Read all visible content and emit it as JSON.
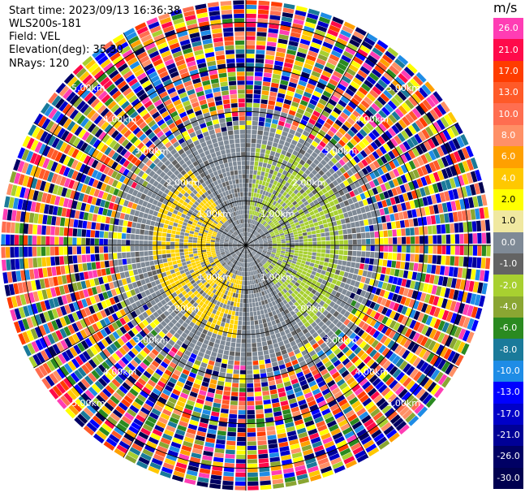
{
  "header": {
    "start_time": "Start time: 2023/09/13 16:36:38",
    "instrument": "WLS200s-181",
    "field": "Field: VEL",
    "elevation": "Elevation(deg): 35.30",
    "nrays": "NRays: 120"
  },
  "colorbar": {
    "unit": "m/s",
    "levels": [
      {
        "label": "26.0",
        "color": "#ff3db4"
      },
      {
        "label": "21.0",
        "color": "#ff0a4a"
      },
      {
        "label": "17.0",
        "color": "#ff3c00"
      },
      {
        "label": "13.0",
        "color": "#ff5a28"
      },
      {
        "label": "10.0",
        "color": "#ff6e50"
      },
      {
        "label": "8.0",
        "color": "#ff9066"
      },
      {
        "label": "6.0",
        "color": "#ffa000"
      },
      {
        "label": "4.0",
        "color": "#ffc800"
      },
      {
        "label": "2.0",
        "color": "#ffff00"
      },
      {
        "label": "1.0",
        "color": "#f0e8a0"
      },
      {
        "label": "0.0",
        "color": "#7f8a96"
      },
      {
        "label": "-1.0",
        "color": "#636363"
      },
      {
        "label": "-2.0",
        "color": "#a8d030"
      },
      {
        "label": "-4.0",
        "color": "#8aa632"
      },
      {
        "label": "-6.0",
        "color": "#2a8a20"
      },
      {
        "label": "-8.0",
        "color": "#1a7a9a"
      },
      {
        "label": "-10.0",
        "color": "#1e8ce6"
      },
      {
        "label": "-13.0",
        "color": "#0000ff"
      },
      {
        "label": "-17.0",
        "color": "#0000c8"
      },
      {
        "label": "-21.0",
        "color": "#000096"
      },
      {
        "label": "-26.0",
        "color": "#000064"
      },
      {
        "label": "-30.0",
        "color": "#000050"
      }
    ]
  },
  "chart_data": {
    "type": "heatmap",
    "projection": "polar",
    "field": "VEL",
    "unit": "m/s",
    "nrays": 120,
    "elevation_deg": 35.3,
    "range_ring_labels": [
      "1.00km",
      "2.00km",
      "3.00km",
      "4.00km",
      "5.00km"
    ],
    "range_rings_km": [
      1,
      2,
      3,
      4,
      5
    ],
    "max_range_km": 5.5,
    "spokes_deg_step": 30
  }
}
